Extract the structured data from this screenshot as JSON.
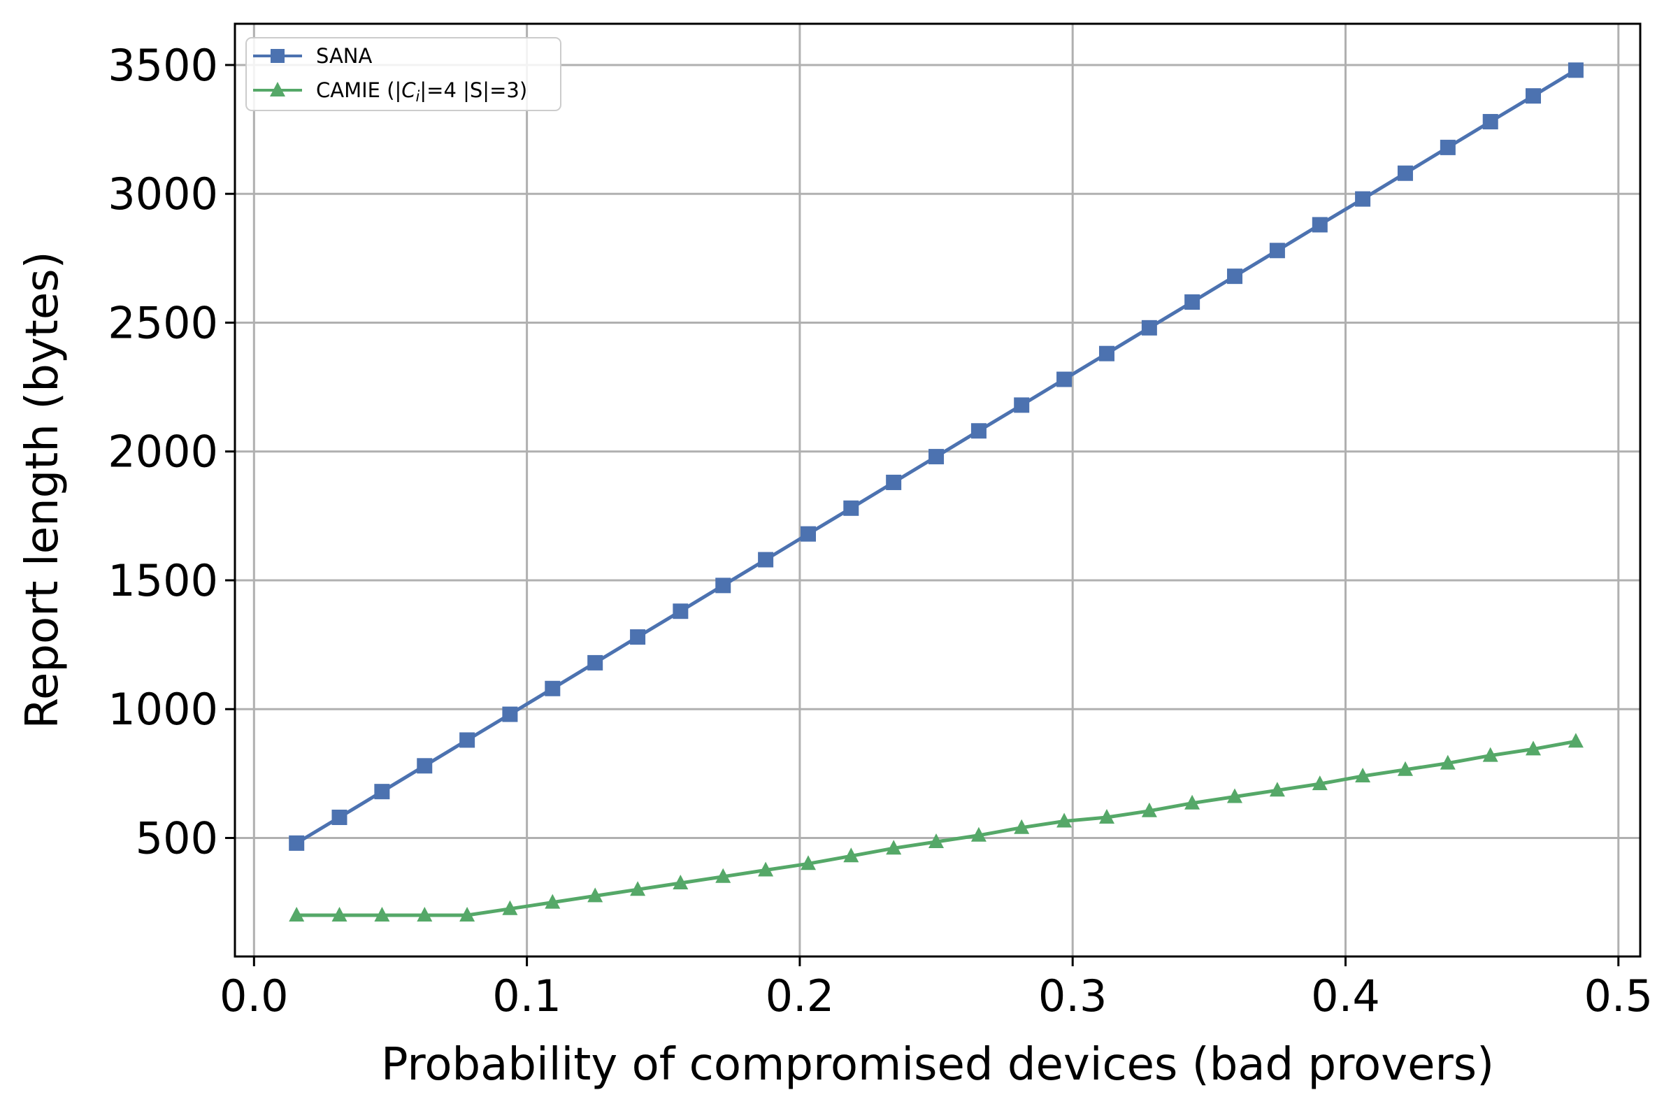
{
  "chart_data": {
    "type": "line",
    "title": "",
    "xlabel": "Probability of compromised devices (bad provers)",
    "ylabel": "Report length (bytes)",
    "xlim": [
      -0.007,
      0.508
    ],
    "ylim": [
      40,
      3660
    ],
    "x_ticks": [
      0.0,
      0.1,
      0.2,
      0.3,
      0.4,
      0.5
    ],
    "x_tick_labels": [
      "0.0",
      "0.1",
      "0.2",
      "0.3",
      "0.4",
      "0.5"
    ],
    "y_ticks": [
      500,
      1000,
      1500,
      2000,
      2500,
      3000,
      3500
    ],
    "y_tick_labels": [
      "500",
      "1000",
      "1500",
      "2000",
      "2500",
      "3000",
      "3500"
    ],
    "grid": true,
    "legend_position": "top-left",
    "x": [
      0.0156,
      0.0313,
      0.0469,
      0.0625,
      0.0781,
      0.0938,
      0.1094,
      0.125,
      0.1406,
      0.1563,
      0.1719,
      0.1875,
      0.2031,
      0.2188,
      0.2344,
      0.25,
      0.2656,
      0.2813,
      0.2969,
      0.3125,
      0.3281,
      0.3438,
      0.3594,
      0.375,
      0.3906,
      0.4063,
      0.4219,
      0.4375,
      0.4531,
      0.4688,
      0.4844
    ],
    "series": [
      {
        "name": "SANA",
        "color": "#4c72b0",
        "marker": "square",
        "values": [
          480,
          580,
          680,
          780,
          880,
          980,
          1080,
          1180,
          1280,
          1380,
          1480,
          1580,
          1680,
          1780,
          1880,
          1980,
          2080,
          2180,
          2280,
          2380,
          2480,
          2580,
          2680,
          2780,
          2880,
          2980,
          3080,
          3180,
          3280,
          3380,
          3480
        ]
      },
      {
        "name": "CAMIE (|C_i|=4 |S|=3)",
        "color": "#55a868",
        "marker": "triangle",
        "values": [
          200,
          200,
          200,
          200,
          200,
          225,
          250,
          275,
          300,
          325,
          350,
          375,
          400,
          430,
          460,
          485,
          510,
          540,
          565,
          580,
          605,
          635,
          660,
          685,
          710,
          740,
          765,
          790,
          820,
          845,
          875
        ]
      }
    ],
    "legend": {
      "sana_label": "SANA",
      "camie_prefix": "CAMIE (|",
      "camie_c": "C",
      "camie_sub": "i",
      "camie_suffix": "|=4 |S|=3)"
    }
  }
}
